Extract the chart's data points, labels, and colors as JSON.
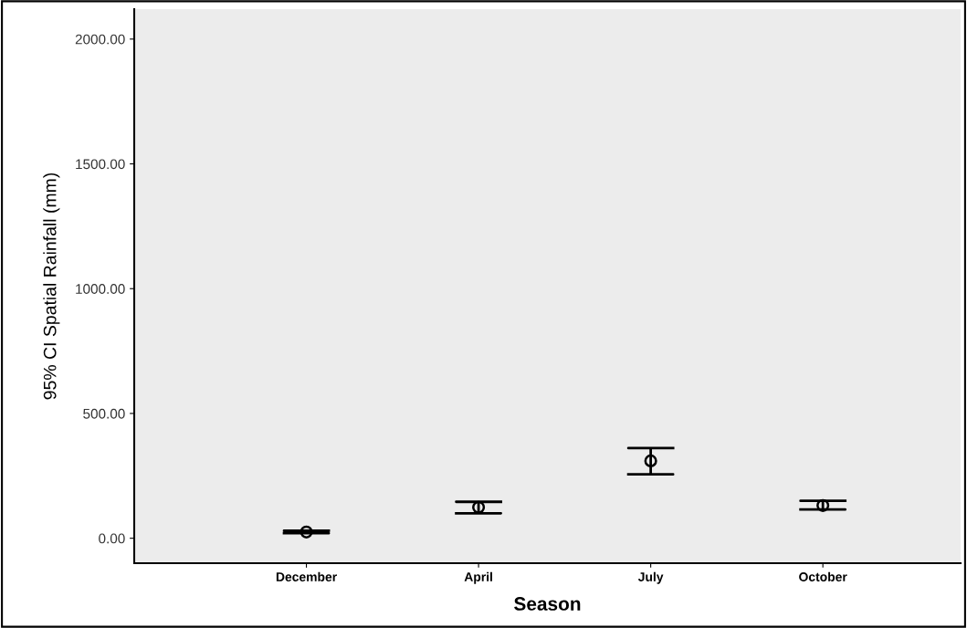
{
  "chart_data": {
    "type": "scatter",
    "xlabel": "Season",
    "ylabel": "95% CI Spatial Rainfall (mm)",
    "categories": [
      "December",
      "April",
      "July",
      "October"
    ],
    "values": [
      25,
      124,
      310,
      131
    ],
    "errors": [
      [
        20,
        30
      ],
      [
        100,
        146
      ],
      [
        256,
        361
      ],
      [
        115,
        150
      ]
    ],
    "color": "#000000",
    "marker": "circle",
    "ylim": [
      -100,
      2120
    ],
    "yticks": [
      {
        "value": 0,
        "label": "0.00"
      },
      {
        "value": 500,
        "label": "500.00"
      },
      {
        "value": 1000,
        "label": "1000.00"
      },
      {
        "value": 1500,
        "label": "1500.00"
      },
      {
        "value": 2000,
        "label": "2000.00"
      }
    ],
    "grid": false,
    "legend": false
  }
}
